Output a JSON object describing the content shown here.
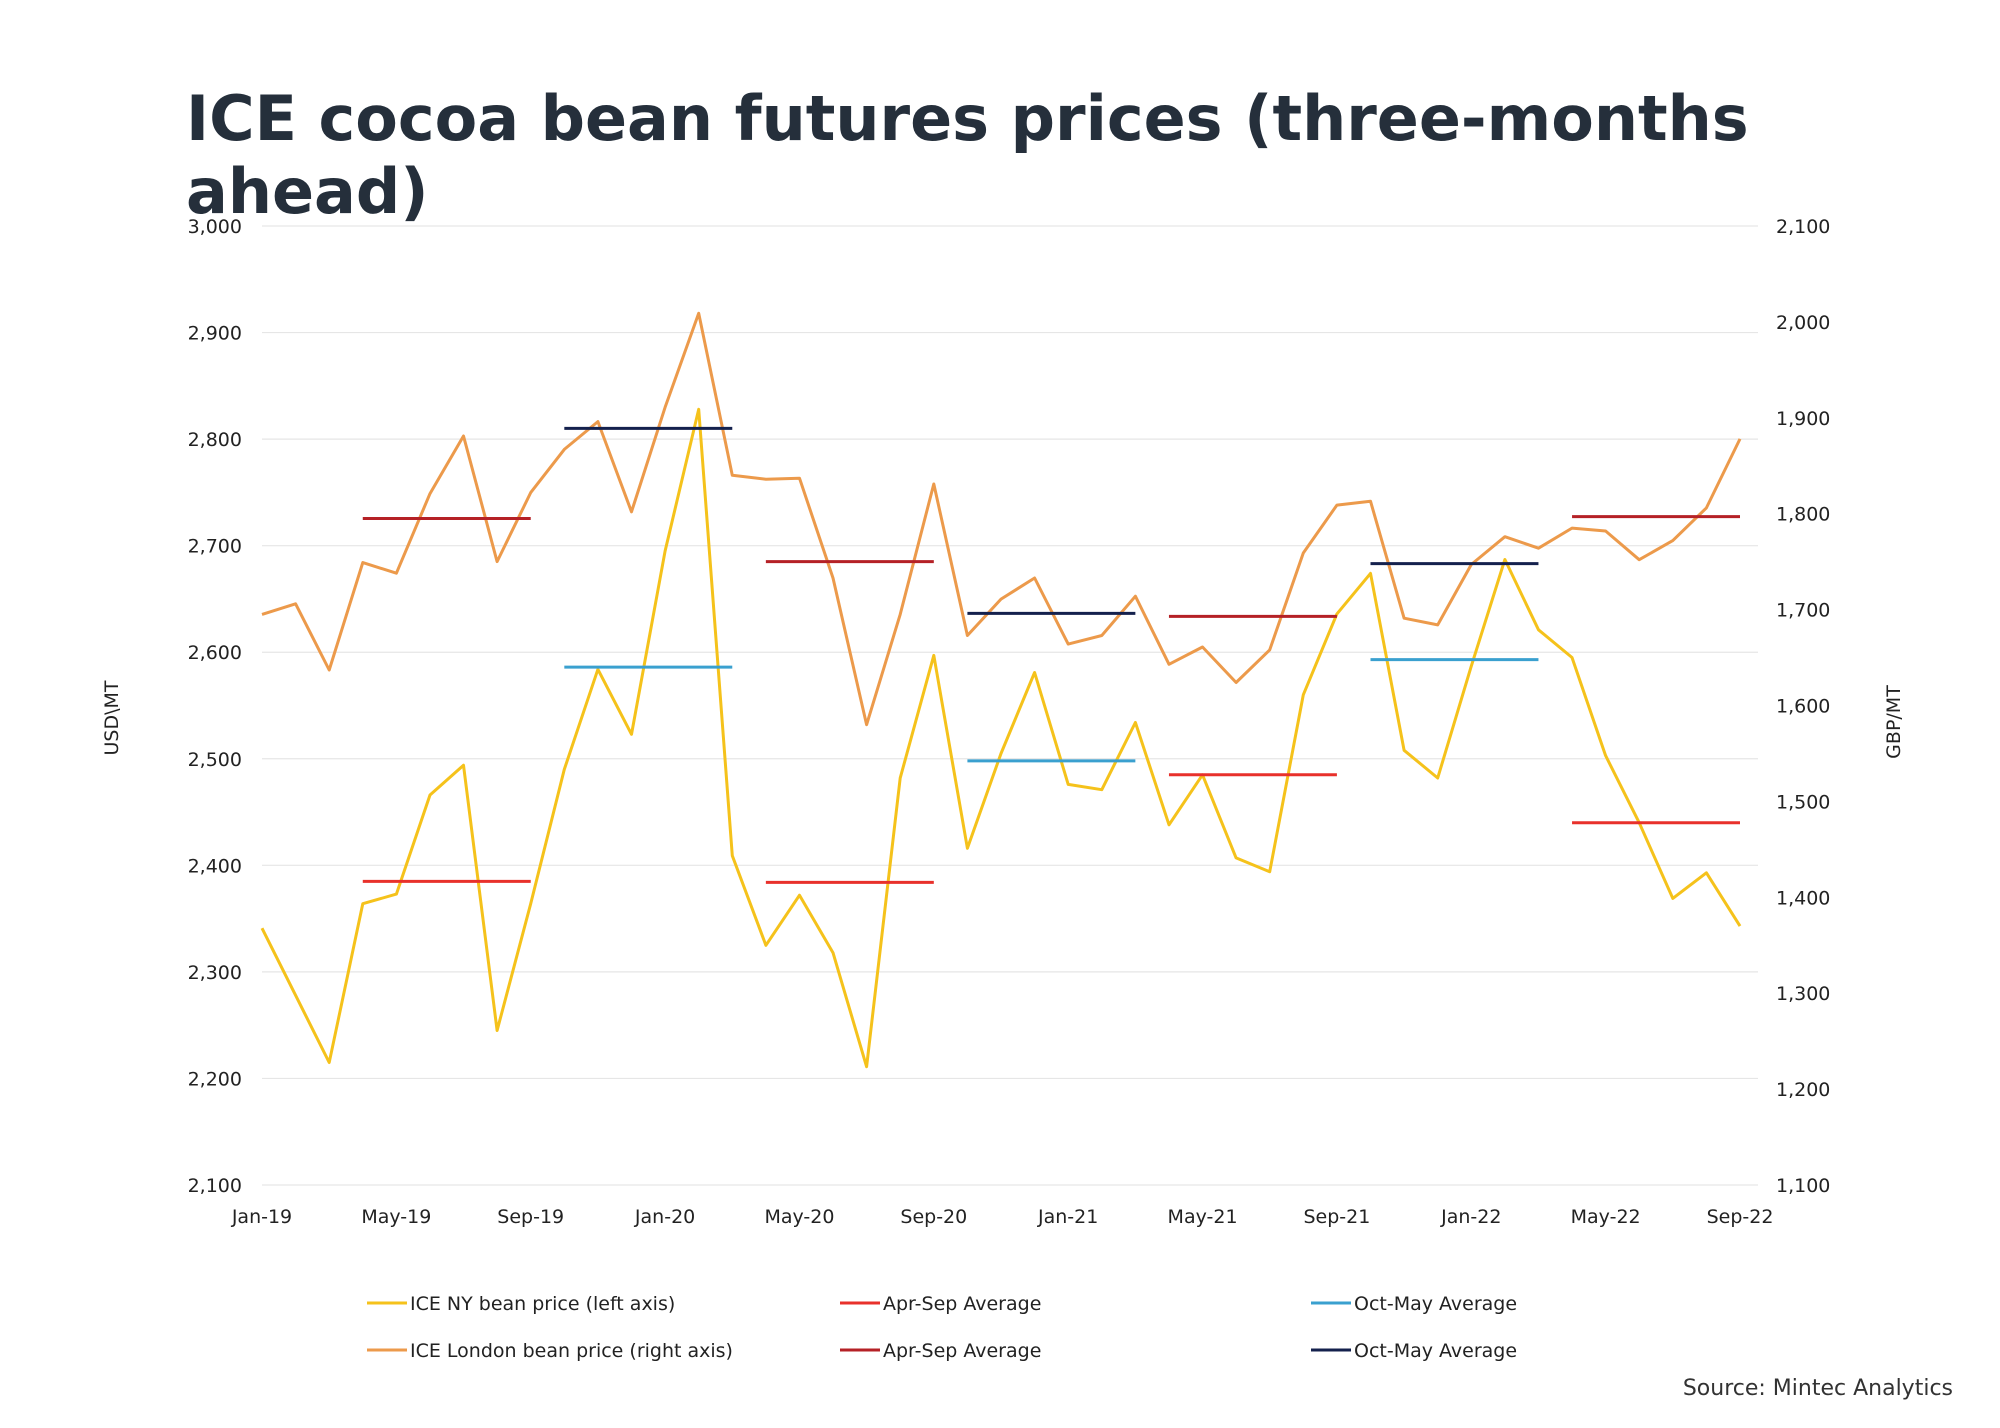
{
  "chart_data": {
    "type": "line",
    "title": "ICE cocoa bean futures prices (three-months ahead)",
    "source": "Source: Mintec Analytics",
    "ylabel_left": "USD\\MT",
    "ylabel_right": "GBP/MT",
    "ylim_left": [
      2100,
      3000
    ],
    "ylim_right": [
      1100,
      2100
    ],
    "yticks_left": [
      "2,100",
      "2,200",
      "2,300",
      "2,400",
      "2,500",
      "2,600",
      "2,700",
      "2,800",
      "2,900",
      "3,000"
    ],
    "yticks_right": [
      "1,100",
      "1,200",
      "1,300",
      "1,400",
      "1,500",
      "1,600",
      "1,700",
      "1,800",
      "1,900",
      "2,000",
      "2,100"
    ],
    "xticks": [
      "Jan-19",
      "May-19",
      "Sep-19",
      "Jan-20",
      "May-20",
      "Sep-20",
      "Jan-21",
      "May-21",
      "Sep-21",
      "Jan-22",
      "May-22",
      "Sep-22"
    ],
    "x": [
      "Jan-19",
      "Feb-19",
      "Mar-19",
      "Apr-19",
      "May-19",
      "Jun-19",
      "Jul-19",
      "Aug-19",
      "Sep-19",
      "Oct-19",
      "Nov-19",
      "Dec-19",
      "Jan-20",
      "Feb-20",
      "Mar-20",
      "Apr-20",
      "May-20",
      "Jun-20",
      "Jul-20",
      "Aug-20",
      "Sep-20",
      "Oct-20",
      "Nov-20",
      "Dec-20",
      "Jan-21",
      "Feb-21",
      "Mar-21",
      "Apr-21",
      "May-21",
      "Jun-21",
      "Jul-21",
      "Aug-21",
      "Sep-21",
      "Oct-21",
      "Nov-21",
      "Dec-21",
      "Jan-22",
      "Feb-22",
      "Mar-22",
      "Apr-22",
      "May-22",
      "Jun-22",
      "Jul-22",
      "Aug-22",
      "Sep-22"
    ],
    "grid": true,
    "legend_position": "bottom",
    "series": [
      {
        "name": "ICE NY bean price (left axis)",
        "axis": "left",
        "color": "#f5c21b",
        "values": [
          2341,
          2278,
          2215,
          2364,
          2373,
          2466,
          2494,
          2245,
          2364,
          2490,
          2584,
          2523,
          2695,
          2828,
          2409,
          2325,
          2372,
          2318,
          2211,
          2482,
          2597,
          2416,
          2505,
          2581,
          2476,
          2471,
          2534,
          2438,
          2485,
          2407,
          2394,
          2560,
          2636,
          2674,
          2508,
          2482,
          2587,
          2687,
          2621,
          2595,
          2503,
          2440,
          2369,
          2393,
          2343
        ]
      },
      {
        "name": "ICE London bean price (right axis)",
        "axis": "right",
        "color": "#ec9a4b",
        "values": [
          1695,
          1706,
          1637,
          1749,
          1738,
          1821,
          1881,
          1750,
          1822,
          1867,
          1896,
          1802,
          1911,
          2009,
          1840,
          1836,
          1837,
          1733,
          1580,
          1695,
          1831,
          1673,
          1711,
          1733,
          1664,
          1673,
          1714,
          1643,
          1661,
          1624,
          1658,
          1759,
          1809,
          1813,
          1691,
          1684,
          1747,
          1776,
          1764,
          1785,
          1782,
          1752,
          1772,
          1806,
          1878
        ]
      },
      {
        "name": "Apr-Sep Average",
        "axis": "left",
        "color": "#e8312b",
        "segments": [
          {
            "start": "Apr-19",
            "end": "Sep-19",
            "value": 2385
          },
          {
            "start": "Apr-20",
            "end": "Sep-20",
            "value": 2384
          },
          {
            "start": "Apr-21",
            "end": "Sep-21",
            "value": 2485
          },
          {
            "start": "Apr-22",
            "end": "Sep-22",
            "value": 2440
          }
        ]
      },
      {
        "name": "Oct-May Average",
        "axis": "left",
        "color": "#3aa0cf",
        "segments": [
          {
            "start": "Oct-19",
            "end": "Mar-20",
            "value": 2586
          },
          {
            "start": "Oct-20",
            "end": "Mar-21",
            "value": 2498
          },
          {
            "start": "Oct-21",
            "end": "Mar-22",
            "value": 2593
          }
        ]
      },
      {
        "name": "Apr-Sep Average",
        "axis": "right",
        "color": "#b52126",
        "segments": [
          {
            "start": "Apr-19",
            "end": "Sep-19",
            "value": 1795
          },
          {
            "start": "Apr-20",
            "end": "Sep-20",
            "value": 1750
          },
          {
            "start": "Apr-21",
            "end": "Sep-21",
            "value": 1693
          },
          {
            "start": "Apr-22",
            "end": "Sep-22",
            "value": 1797
          }
        ]
      },
      {
        "name": "Oct-May Average",
        "axis": "right",
        "color": "#14214d",
        "segments": [
          {
            "start": "Oct-19",
            "end": "Mar-20",
            "value": 1889
          },
          {
            "start": "Oct-20",
            "end": "Mar-21",
            "value": 1696
          },
          {
            "start": "Oct-21",
            "end": "Mar-22",
            "value": 1748
          }
        ]
      }
    ]
  }
}
